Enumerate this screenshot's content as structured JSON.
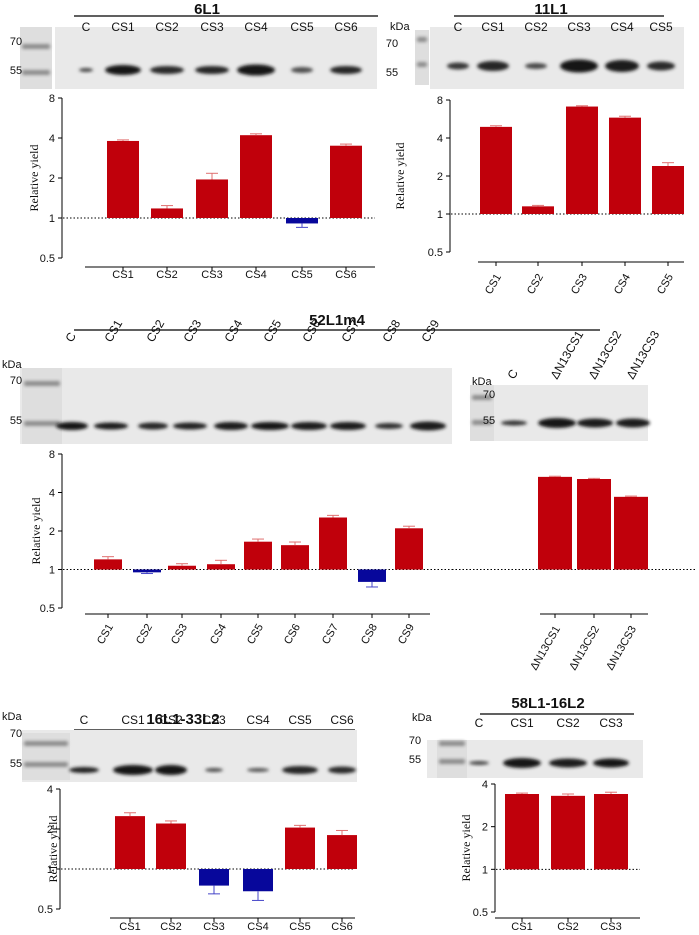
{
  "colors": {
    "increase": "#c0000b",
    "decrease": "#07079b",
    "error_increase": "#e07070",
    "error_decrease": "#4646c8"
  },
  "units_label": "kDa",
  "y_axis_label": "Relative yield",
  "panels": [
    {
      "title": "6L1",
      "blot_lanes": [
        "C",
        "CS1",
        "CS2",
        "CS3",
        "CS4",
        "CS5",
        "CS6"
      ],
      "marker_labels": [
        "70",
        "55"
      ],
      "chart_data": {
        "type": "bar",
        "categories": [
          "CS1",
          "CS2",
          "CS3",
          "CS4",
          "CS5",
          "CS6"
        ],
        "values": [
          3.8,
          1.18,
          1.95,
          4.2,
          0.91,
          3.5
        ],
        "errors": [
          0.07,
          0.06,
          0.22,
          0.1,
          0.06,
          0.1
        ],
        "y_scale": "log2",
        "ylim": [
          0.5,
          8
        ],
        "yticks": [
          "0.5",
          "1",
          "2",
          "4",
          "8"
        ],
        "ylabel": "Relative yield",
        "baseline": 1
      }
    },
    {
      "title": "11L1",
      "blot_lanes": [
        "C",
        "CS1",
        "CS2",
        "CS3",
        "CS4",
        "CS5"
      ],
      "marker_labels": [
        "70",
        "55"
      ],
      "chart_data": {
        "type": "bar",
        "categories": [
          "CS1",
          "CS2",
          "CS3",
          "CS4",
          "CS5"
        ],
        "values": [
          4.9,
          1.15,
          7.1,
          5.8,
          2.4
        ],
        "errors": [
          0.1,
          0.02,
          0.1,
          0.15,
          0.15
        ],
        "y_scale": "log2",
        "ylim": [
          0.5,
          8
        ],
        "yticks": [
          "0.5",
          "1",
          "2",
          "4",
          "8"
        ],
        "ylabel": "Relative yield",
        "baseline": 1
      }
    },
    {
      "title": "52L1m4",
      "blot_lanes": [
        "C",
        "CS1",
        "CS2",
        "CS3",
        "CS4",
        "CS5",
        "CS6",
        "CS7",
        "CS8",
        "CS9"
      ],
      "marker_labels": [
        "70",
        "55"
      ],
      "chart_data": {
        "type": "bar",
        "categories": [
          "CS1",
          "CS2",
          "CS3",
          "CS4",
          "CS5",
          "CS6",
          "CS7",
          "CS8",
          "CS9"
        ],
        "values": [
          1.2,
          0.95,
          1.07,
          1.1,
          1.65,
          1.55,
          2.55,
          0.8,
          2.1
        ],
        "errors": [
          0.06,
          0.02,
          0.04,
          0.08,
          0.08,
          0.09,
          0.1,
          0.07,
          0.08
        ],
        "y_scale": "log2",
        "ylim": [
          0.5,
          8
        ],
        "yticks": [
          "0.5",
          "1",
          "2",
          "4",
          "8"
        ],
        "ylabel": "Relative yield",
        "baseline": 1
      }
    },
    {
      "title": "",
      "blot_lanes": [
        "C",
        "ΔN13CS1",
        "ΔN13CS2",
        "ΔN13CS3"
      ],
      "marker_labels": [
        "70",
        "55"
      ],
      "chart_data": {
        "type": "bar",
        "categories": [
          "ΔN13CS1",
          "ΔN13CS2",
          "ΔN13CS3"
        ],
        "values": [
          5.3,
          5.1,
          3.7
        ],
        "errors": [
          0.06,
          0.06,
          0.05
        ],
        "y_scale": "log2",
        "ylim": [
          0.5,
          8
        ],
        "baseline": 1
      }
    },
    {
      "title": "16L1-33L2",
      "blot_lanes": [
        "C",
        "CS1",
        "CS2",
        "CS3",
        "CS4",
        "CS5",
        "CS6"
      ],
      "marker_labels": [
        "70",
        "55"
      ],
      "chart_data": {
        "type": "bar",
        "categories": [
          "CS1",
          "CS2",
          "CS3",
          "CS4",
          "CS5",
          "CS6"
        ],
        "values": [
          2.5,
          2.2,
          0.75,
          0.68,
          2.05,
          1.8
        ],
        "errors": [
          0.15,
          0.1,
          0.1,
          0.1,
          0.08,
          0.15
        ],
        "y_scale": "log2",
        "ylim": [
          0.5,
          4
        ],
        "yticks": [
          "0.5",
          "1",
          "2",
          "4"
        ],
        "ylabel": "Relative yield",
        "baseline": 1
      }
    },
    {
      "title": "58L1-16L2",
      "blot_lanes": [
        "C",
        "CS1",
        "CS2",
        "CS3"
      ],
      "marker_labels": [
        "70",
        "55"
      ],
      "chart_data": {
        "type": "bar",
        "categories": [
          "CS1",
          "CS2",
          "CS3"
        ],
        "values": [
          3.4,
          3.3,
          3.4
        ],
        "errors": [
          0.05,
          0.1,
          0.1
        ],
        "y_scale": "log2",
        "ylim": [
          0.5,
          4
        ],
        "yticks": [
          "0.5",
          "1",
          "2",
          "4"
        ],
        "ylabel": "Relative yield",
        "baseline": 1
      }
    }
  ]
}
